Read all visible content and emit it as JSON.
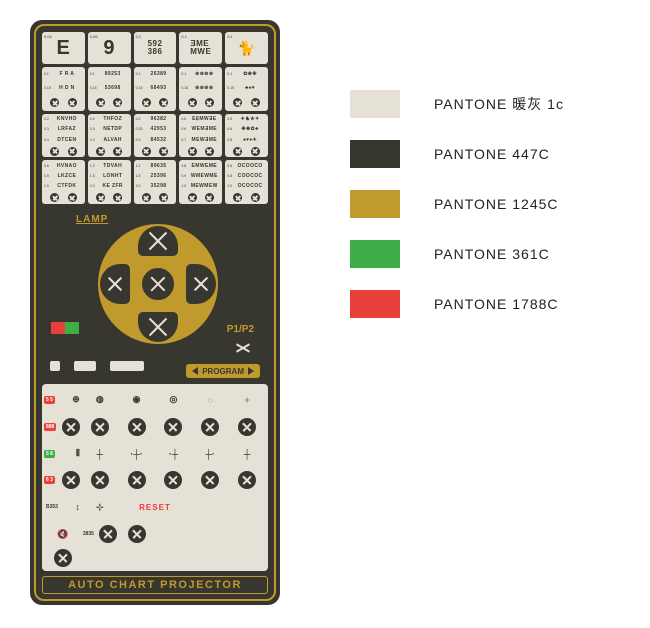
{
  "colors": {
    "warm_gray": "#e6e1d6",
    "dark": "#37372f",
    "gold": "#c19a2e",
    "green": "#3fae49",
    "red": "#e8403a",
    "cream_line": "#b8b3a4",
    "white": "#ffffff"
  },
  "swatches": [
    {
      "color_key": "warm_gray",
      "label": "PANTONE 暖灰 1c"
    },
    {
      "color_key": "dark",
      "label": "PANTONE 447C"
    },
    {
      "color_key": "gold",
      "label": "PANTONE 1245C"
    },
    {
      "color_key": "green",
      "label": "PANTONE 361C"
    },
    {
      "color_key": "red",
      "label": "PANTONE 1788C"
    }
  ],
  "remote": {
    "title": "AUTO CHART PROJECTOR",
    "lamp_label": "LAMP",
    "p12_label": "P1/P2",
    "program_label": "PROGRAM",
    "reset_label": "RESET",
    "top_headers": [
      {
        "lead": "0.04",
        "big": "E",
        "fs": 20
      },
      {
        "lead": "0.05",
        "big": "9",
        "fs": 20
      },
      {
        "lead": "0.1",
        "big": "592\n386",
        "fs": 8
      },
      {
        "lead": "0.1",
        "big": "ƎME\nMWE",
        "fs": 8
      },
      {
        "lead": "0.1",
        "big": "🐈",
        "fs": 14
      }
    ],
    "col_panels": [
      [
        {
          "rows": [
            {
              "lead": "0.1",
              "txt": "F R A"
            },
            {
              "lead": "0.15",
              "txt": "H D N"
            }
          ],
          "btns": 2
        },
        {
          "rows": [
            {
              "lead": "0.2",
              "txt": "KNVHO"
            },
            {
              "lead": "0.3",
              "txt": "LRFAZ"
            },
            {
              "lead": "0.4",
              "txt": "DTCEN"
            }
          ],
          "btns": 2
        },
        {
          "rows": [
            {
              "lead": "0.6",
              "txt": "HVNAO"
            },
            {
              "lead": "0.9",
              "txt": "LKZCE"
            },
            {
              "lead": "1.0",
              "txt": "CTFDK"
            }
          ],
          "btns": 2
        }
      ],
      [
        {
          "rows": [
            {
              "lead": "0.1",
              "txt": "89253"
            },
            {
              "lead": "0.15",
              "txt": "53698"
            }
          ],
          "btns": 2
        },
        {
          "rows": [
            {
              "lead": "0.2",
              "txt": "THFOZ"
            },
            {
              "lead": "0.3",
              "txt": "NETDP"
            },
            {
              "lead": "0.4",
              "txt": "ALVAH"
            }
          ],
          "btns": 2
        },
        {
          "rows": [
            {
              "lead": "1.2",
              "txt": "TDVAH"
            },
            {
              "lead": "1.5",
              "txt": "LONHT"
            },
            {
              "lead": "2.0",
              "txt": "KE ZFR"
            }
          ],
          "btns": 2
        }
      ],
      [
        {
          "rows": [
            {
              "lead": "0.1",
              "txt": "26389"
            },
            {
              "lead": "0.15",
              "txt": "68493"
            }
          ],
          "btns": 2
        },
        {
          "rows": [
            {
              "lead": "0.2",
              "txt": "96382"
            },
            {
              "lead": "0.25",
              "txt": "42953"
            },
            {
              "lead": "0.3",
              "txt": "84532"
            }
          ],
          "btns": 2
        },
        {
          "rows": [
            {
              "lead": "1.2",
              "txt": "89635"
            },
            {
              "lead": "1.5",
              "txt": "25396"
            },
            {
              "lead": "2.0",
              "txt": "35298"
            }
          ],
          "btns": 2
        }
      ],
      [
        {
          "rows": [
            {
              "lead": "0.1",
              "txt": "⊗⊗⊗⊗"
            },
            {
              "lead": "0.15",
              "txt": "⊗⊗⊗⊗"
            }
          ],
          "btns": 2
        },
        {
          "rows": [
            {
              "lead": "0.5",
              "txt": "EⴹMWƎE"
            },
            {
              "lead": "0.6",
              "txt": "WEMƎME"
            },
            {
              "lead": "0.7",
              "txt": "MEWƎME"
            }
          ],
          "btns": 2
        },
        {
          "rows": [
            {
              "lead": "0.8",
              "txt": "EMWEME"
            },
            {
              "lead": "0.9",
              "txt": "WMEWME"
            },
            {
              "lead": "1.0",
              "txt": "MEWMEW"
            }
          ],
          "btns": 2
        }
      ],
      [
        {
          "rows": [
            {
              "lead": "0.1",
              "txt": "✿❀✤"
            },
            {
              "lead": "0.15",
              "txt": "♣♠♥"
            }
          ],
          "btns": 2
        },
        {
          "rows": [
            {
              "lead": "0.5",
              "txt": "✈♞★✦"
            },
            {
              "lead": "0.6",
              "txt": "✤❀✿♣"
            },
            {
              "lead": "0.8",
              "txt": "♠♥♦✈"
            }
          ],
          "btns": 2
        },
        {
          "rows": [
            {
              "lead": "0.6",
              "txt": "OCOOCO"
            },
            {
              "lead": "0.8",
              "txt": "COOCOC"
            },
            {
              "lead": "1.0",
              "txt": "OCOCOC"
            }
          ],
          "btns": 2
        }
      ]
    ],
    "lower_glyphs": [
      [
        "⊕",
        "◍",
        "◉",
        "◎",
        "◌",
        "+"
      ],
      [
        "x",
        "x",
        "x",
        "x",
        "x",
        "x"
      ],
      [
        "⦀",
        "┼",
        "·┼·",
        "·┼",
        "┼·",
        "┼"
      ],
      [
        "x",
        "x",
        "x",
        "x",
        "x",
        "x"
      ],
      [
        "↕",
        "⊹",
        "",
        "",
        "",
        "🔇"
      ],
      [
        "x",
        "x",
        "",
        "",
        "",
        "x"
      ]
    ],
    "lower_badges_left": [
      "5 5",
      "888",
      "5 8",
      "6 3",
      "B353",
      "3835"
    ],
    "lower_special_colors": {
      "r0c5": "green",
      "r2c0_top": "green",
      "r2c0_bot": "red"
    }
  }
}
